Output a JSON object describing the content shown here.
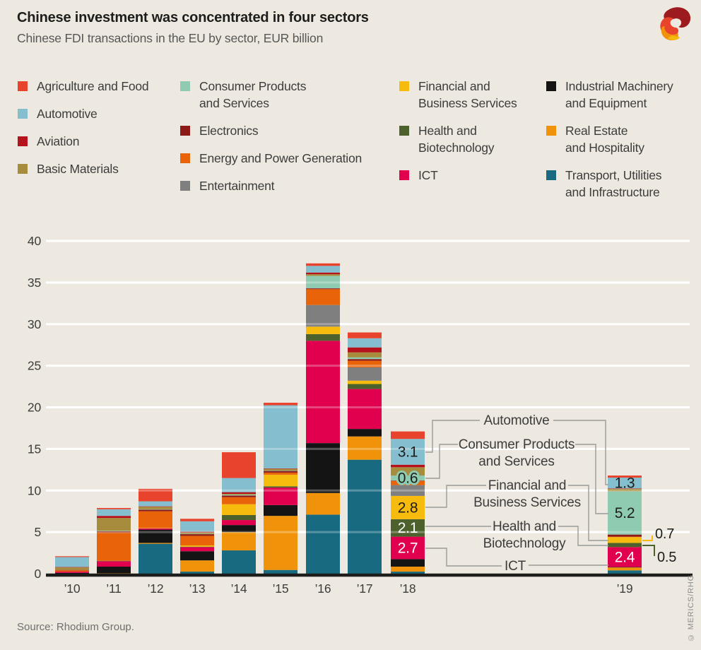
{
  "header": {
    "title": "Chinese investment was concentrated in four sectors",
    "subtitle": "Chinese FDI transactions in the EU by sector, EUR billion"
  },
  "source": "Source: Rhodium Group.",
  "watermark": "© MERICS/RHG",
  "colors": {
    "background": "#ede9e1",
    "grid": "#ffffff",
    "axis": "#1d1d1b",
    "connector": "#9a9a98"
  },
  "legend": {
    "columns": [
      [
        {
          "key": "agriculture",
          "lines": [
            "Agriculture and Food"
          ]
        },
        {
          "key": "automotive",
          "lines": [
            "Automotive"
          ]
        },
        {
          "key": "aviation",
          "lines": [
            "Aviation"
          ]
        },
        {
          "key": "basic",
          "lines": [
            "Basic Materials"
          ]
        }
      ],
      [
        {
          "key": "consumer",
          "lines": [
            "Consumer Products",
            "and Services"
          ]
        },
        {
          "key": "electronics",
          "lines": [
            "Electronics"
          ]
        },
        {
          "key": "energy",
          "lines": [
            "Energy and Power Generation"
          ]
        },
        {
          "key": "entertainment",
          "lines": [
            "Entertainment"
          ]
        }
      ],
      [
        {
          "key": "financial",
          "lines": [
            "Financial and",
            "Business Services"
          ]
        },
        {
          "key": "health",
          "lines": [
            "Health and",
            "Biotechnology"
          ]
        },
        {
          "key": "ict",
          "lines": [
            "ICT"
          ]
        }
      ],
      [
        {
          "key": "industrial",
          "lines": [
            "Industrial Machinery",
            "and Equipment"
          ]
        },
        {
          "key": "real_estate",
          "lines": [
            "Real Estate",
            "and Hospitality"
          ]
        },
        {
          "key": "transport",
          "lines": [
            "Transport, Utilities",
            "and Infrastructure"
          ]
        }
      ]
    ]
  },
  "chart_data": {
    "type": "bar",
    "stacked": true,
    "title": "Chinese FDI transactions in the EU by sector, EUR billion",
    "xlabel": "",
    "ylabel": "EUR billion",
    "ylim": [
      0,
      40
    ],
    "yticks": [
      0,
      5,
      10,
      15,
      20,
      25,
      30,
      35,
      40
    ],
    "grid": true,
    "legend_position": "top",
    "categories": [
      "’10",
      "’11",
      "’12",
      "’13",
      "’14",
      "’15",
      "’16",
      "’17",
      "’18",
      "’19"
    ],
    "stack_order_bottom_to_top": [
      "transport",
      "real_estate",
      "industrial",
      "ict",
      "health",
      "financial",
      "entertainment",
      "energy",
      "electronics",
      "consumer",
      "basic",
      "aviation",
      "automotive",
      "agriculture"
    ],
    "series": [
      {
        "key": "agriculture",
        "name": "Agriculture and Food",
        "color": "#e8432d",
        "values": [
          0.1,
          0.15,
          1.5,
          0.3,
          3.1,
          0.3,
          0.3,
          0.7,
          0.9,
          0.25
        ]
      },
      {
        "key": "automotive",
        "name": "Automotive",
        "color": "#85bece",
        "values": [
          1.2,
          0.8,
          0.6,
          1.25,
          1.7,
          7.6,
          0.8,
          1.1,
          3.1,
          1.3
        ]
      },
      {
        "key": "aviation",
        "name": "Aviation",
        "color": "#b5121b",
        "values": [
          0.05,
          0.25,
          0.05,
          0.1,
          0.2,
          0.05,
          0.2,
          0.6,
          0.3,
          0.05
        ]
      },
      {
        "key": "basic",
        "name": "Basic Materials",
        "color": "#a68c3c",
        "values": [
          0.3,
          1.55,
          0.3,
          0.15,
          0.1,
          0.2,
          0.2,
          0.6,
          1.0,
          0.3
        ]
      },
      {
        "key": "consumer",
        "name": "Consumer Products and Services",
        "color": "#8fcbb0",
        "values": [
          0,
          0.05,
          0.05,
          0.05,
          0.1,
          0.05,
          1.5,
          0.2,
          0.6,
          5.2
        ]
      },
      {
        "key": "electronics",
        "name": "Electronics",
        "color": "#8e1a18",
        "values": [
          0.05,
          0.15,
          0.2,
          0.2,
          0.2,
          0.2,
          0.1,
          0.2,
          0.05,
          0.25
        ]
      },
      {
        "key": "energy",
        "name": "Energy and Power Generation",
        "color": "#e96408",
        "values": [
          0.15,
          3.4,
          2.0,
          1.15,
          0.85,
          0.25,
          1.9,
          0.8,
          0.5,
          0.05
        ]
      },
      {
        "key": "entertainment",
        "name": "Entertainment",
        "color": "#7f7f7f",
        "values": [
          0,
          0,
          0,
          0,
          0,
          0,
          2.6,
          1.6,
          1.3,
          0
        ]
      },
      {
        "key": "financial",
        "name": "Financial and Business Services",
        "color": "#f7bb0e",
        "values": [
          0,
          0,
          0.05,
          0.15,
          1.3,
          1.4,
          0.9,
          0.4,
          2.8,
          0.7
        ]
      },
      {
        "key": "health",
        "name": "Health and Biotechnology",
        "color": "#4c612c",
        "values": [
          0,
          0.05,
          0,
          0.05,
          0.6,
          0.15,
          0.8,
          0.6,
          2.1,
          0.5
        ]
      },
      {
        "key": "ict",
        "name": "ICT",
        "color": "#e0004d",
        "values": [
          0.15,
          0.65,
          0.15,
          0.5,
          0.6,
          2.1,
          12.3,
          4.8,
          2.7,
          2.4
        ]
      },
      {
        "key": "industrial",
        "name": "Industrial Machinery and Equipment",
        "color": "#141414",
        "values": [
          0.1,
          0.8,
          1.6,
          1.1,
          0.85,
          1.3,
          6.0,
          0.9,
          0.9,
          0.05
        ]
      },
      {
        "key": "real_estate",
        "name": "Real Estate and Hospitality",
        "color": "#f0930a",
        "values": [
          0,
          0.05,
          0.1,
          1.35,
          2.2,
          6.5,
          2.6,
          2.8,
          0.6,
          0.35
        ]
      },
      {
        "key": "transport",
        "name": "Transport, Utilities and Infrastructure",
        "color": "#186a80",
        "values": [
          0,
          0,
          3.6,
          0.25,
          2.8,
          0.45,
          7.1,
          13.7,
          0.25,
          0.4
        ]
      }
    ],
    "value_labels": [
      {
        "category": "’18",
        "series": "automotive",
        "text": "3.1",
        "color": "#1d1d1b"
      },
      {
        "category": "’18",
        "series": "consumer",
        "text": "0.6",
        "color": "#1d1d1b",
        "halo": "#8fcbb0"
      },
      {
        "category": "’18",
        "series": "financial",
        "text": "2.8",
        "color": "#1d1d1b"
      },
      {
        "category": "’18",
        "series": "health",
        "text": "2.1",
        "color": "#ffffff"
      },
      {
        "category": "’18",
        "series": "ict",
        "text": "2.7",
        "color": "#ffffff"
      },
      {
        "category": "’19",
        "series": "automotive",
        "text": "1.3",
        "color": "#1d1d1b"
      },
      {
        "category": "’19",
        "series": "consumer",
        "text": "5.2",
        "color": "#1d1d1b"
      },
      {
        "category": "’19",
        "series": "ict",
        "text": "2.4",
        "color": "#ffffff"
      }
    ],
    "callouts": [
      {
        "series": "automotive",
        "lines": [
          "Automotive"
        ]
      },
      {
        "series": "consumer",
        "lines": [
          "Consumer Products",
          "and Services"
        ]
      },
      {
        "series": "financial",
        "lines": [
          "Financial and",
          "Business Services"
        ]
      },
      {
        "series": "health",
        "lines": [
          "Health and",
          "Biotechnology"
        ]
      },
      {
        "series": "ict",
        "lines": [
          "ICT"
        ]
      }
    ],
    "outside_labels": [
      {
        "series": "financial",
        "category": "’19",
        "text": "0.7",
        "line_color": "#f7bb0e"
      },
      {
        "series": "health",
        "category": "’19",
        "text": "0.5",
        "line_color": "#4c612c"
      }
    ]
  }
}
